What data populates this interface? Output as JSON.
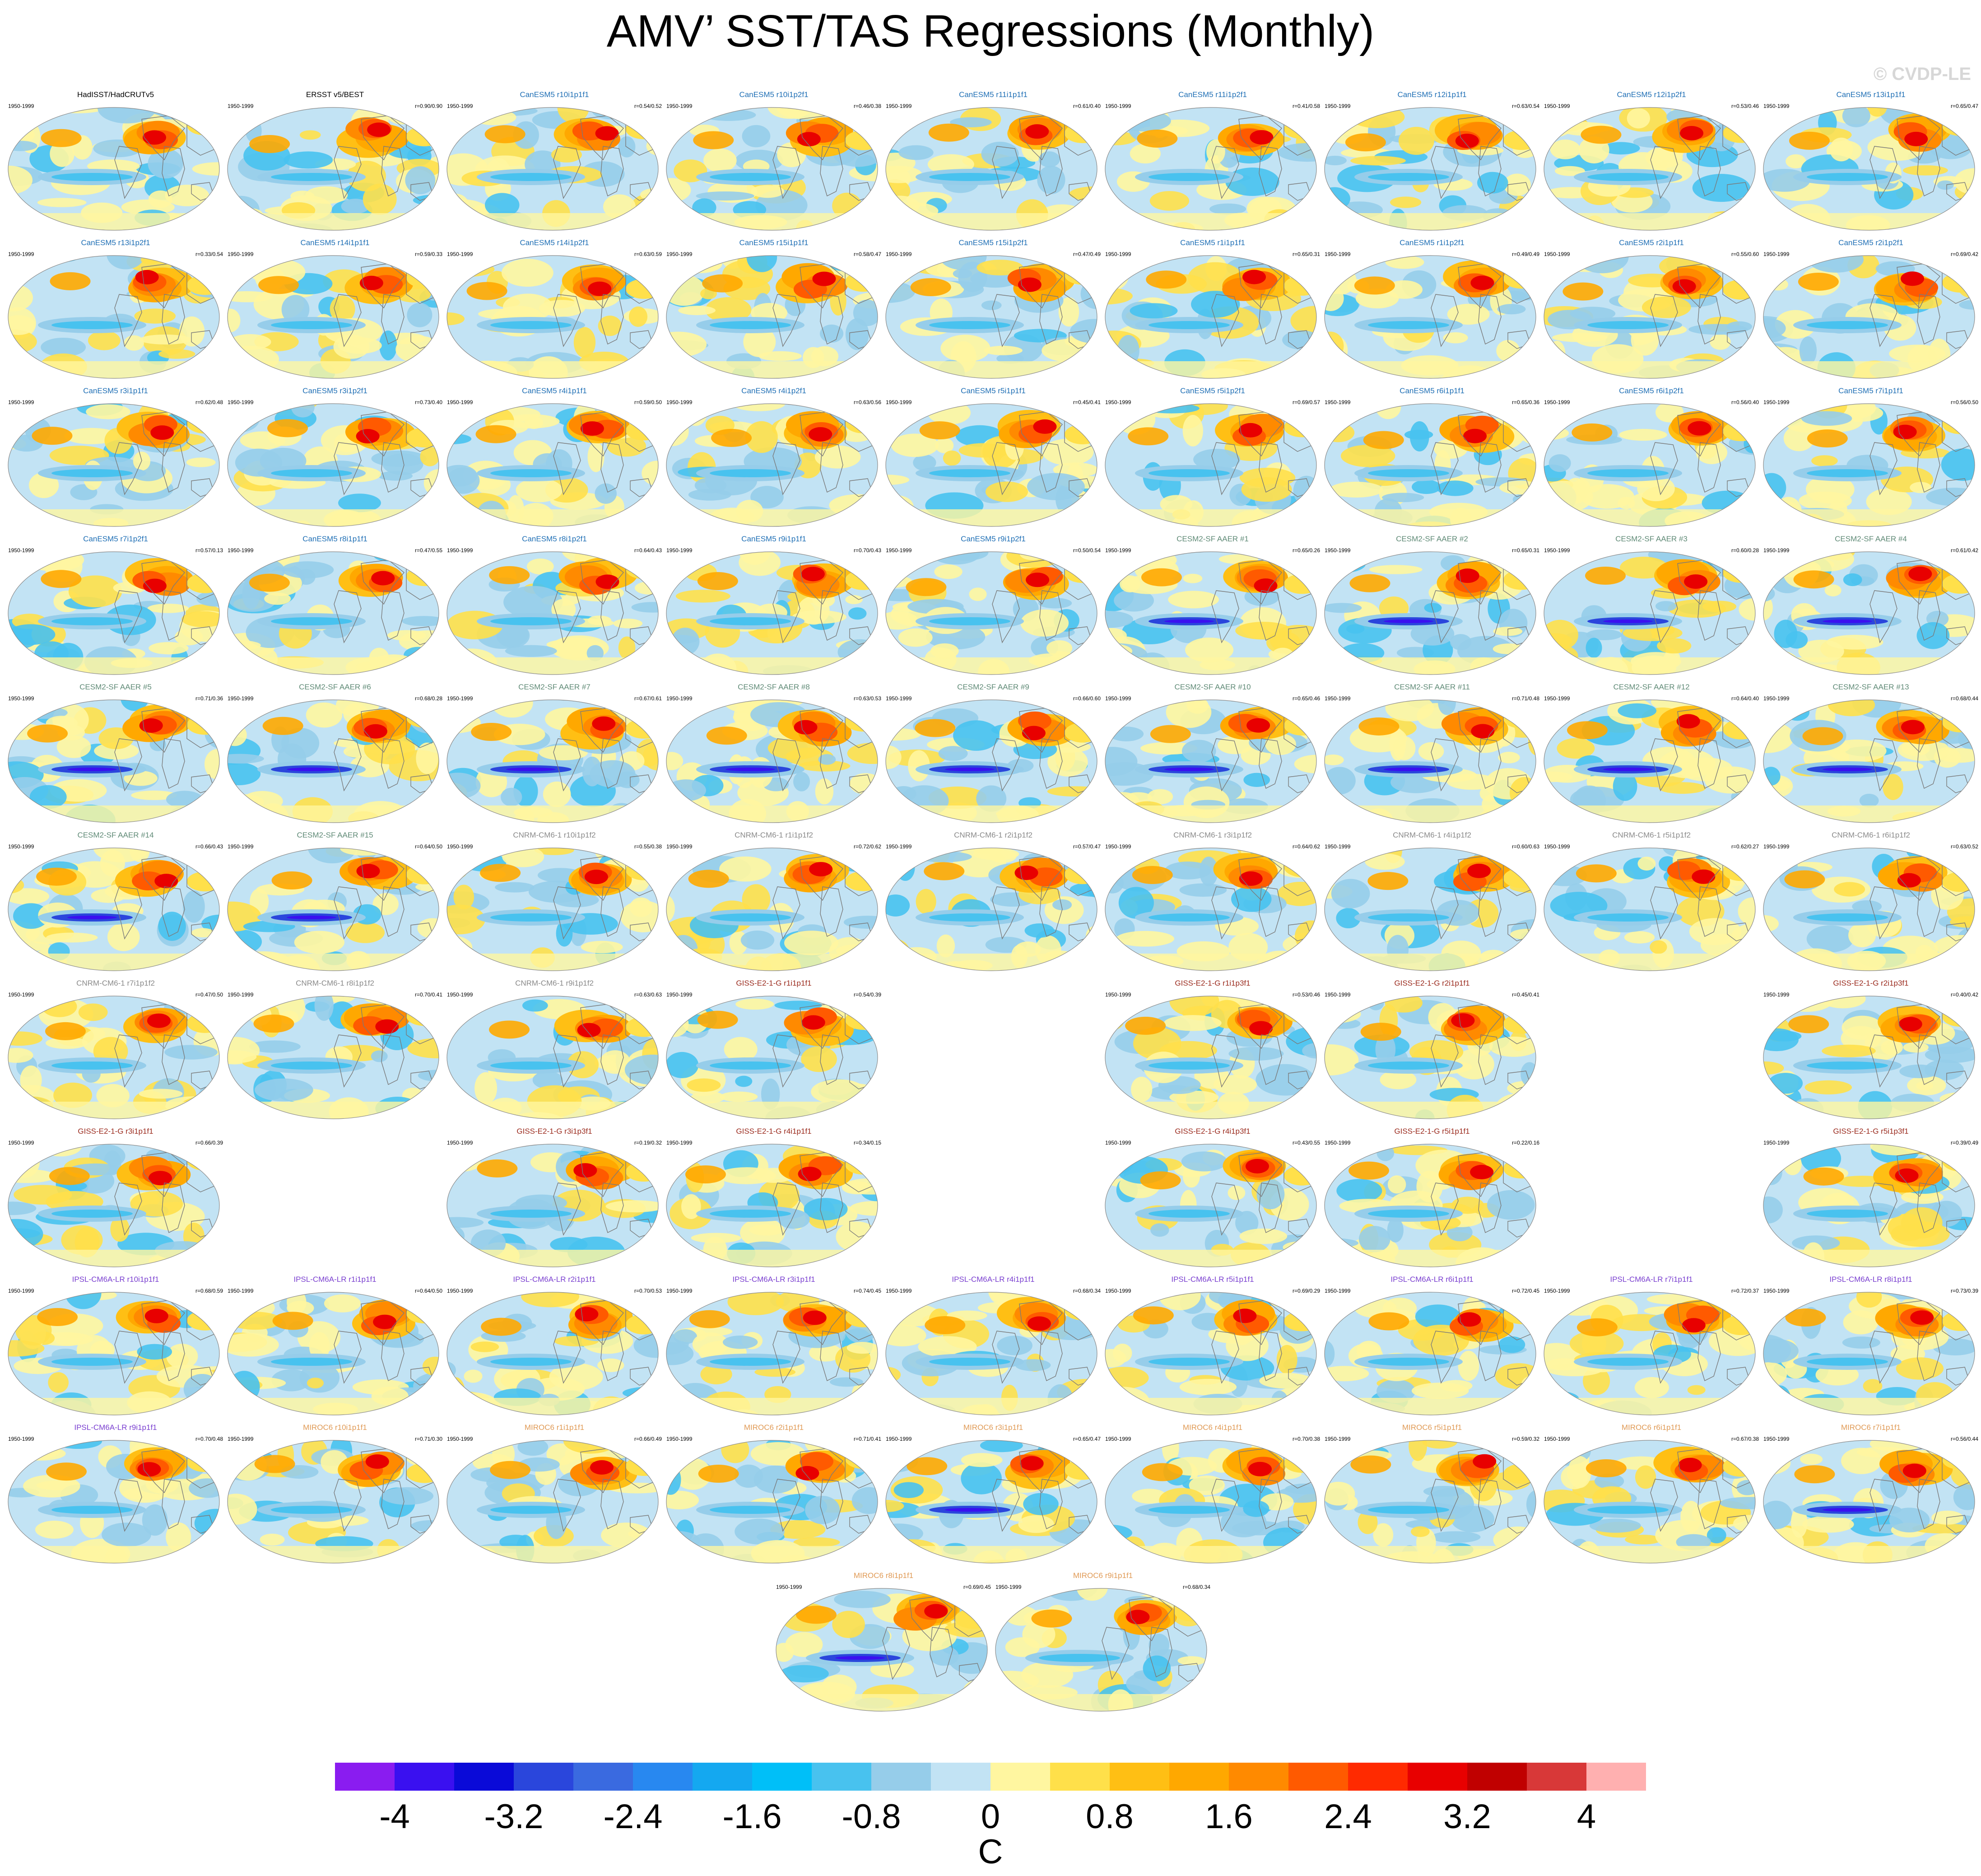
{
  "title": "AMV’ SST/TAS Regressions (Monthly)",
  "copyright": "© CVDP-LE",
  "chart_data": {
    "type": "heatmap",
    "title": "AMV’ SST/TAS Regressions (Monthly)",
    "grid": "9 columns of global map panels",
    "period": "1950-1999",
    "units": "C",
    "colorbar": {
      "labels": [
        "-4",
        "-3.2",
        "-2.4",
        "-1.6",
        "-0.8",
        "0",
        "0.8",
        "1.6",
        "2.4",
        "3.2",
        "4"
      ],
      "colors": [
        "#8a1cf0",
        "#3a10f0",
        "#0a0ad8",
        "#2a46dc",
        "#3a6ae0",
        "#2888f0",
        "#14a8f0",
        "#00bff8",
        "#48c2ef",
        "#96cdea",
        "#c2e3f4",
        "#fff6a0",
        "#ffe04a",
        "#ffbf14",
        "#ffa800",
        "#ff8a00",
        "#ff5a00",
        "#ff2a00",
        "#e80000",
        "#c00000",
        "#d83838",
        "#ffb0b0"
      ]
    },
    "panels": [
      {
        "row": 0,
        "col": 0,
        "name": "HadISST/HadCRUTv5",
        "group": "obs",
        "period": "1950-1999",
        "r": "",
        "seed": 1
      },
      {
        "row": 0,
        "col": 1,
        "name": "ERSST v5/BEST",
        "group": "obs",
        "period": "1950-1999",
        "r": "r=0.90/0.90",
        "seed": 2
      },
      {
        "row": 0,
        "col": 2,
        "name": "CanESM5 r10i1p1f1",
        "group": "canesm",
        "period": "1950-1999",
        "r": "r=0.54/0.52",
        "seed": 3
      },
      {
        "row": 0,
        "col": 3,
        "name": "CanESM5 r10i1p2f1",
        "group": "canesm",
        "period": "1950-1999",
        "r": "r=0.46/0.38",
        "seed": 4
      },
      {
        "row": 0,
        "col": 4,
        "name": "CanESM5 r11i1p1f1",
        "group": "canesm",
        "period": "1950-1999",
        "r": "r=0.61/0.40",
        "seed": 5
      },
      {
        "row": 0,
        "col": 5,
        "name": "CanESM5 r11i1p2f1",
        "group": "canesm",
        "period": "1950-1999",
        "r": "r=0.41/0.58",
        "seed": 6
      },
      {
        "row": 0,
        "col": 6,
        "name": "CanESM5 r12i1p1f1",
        "group": "canesm",
        "period": "1950-1999",
        "r": "r=0.63/0.54",
        "seed": 7
      },
      {
        "row": 0,
        "col": 7,
        "name": "CanESM5 r12i1p2f1",
        "group": "canesm",
        "period": "1950-1999",
        "r": "r=0.53/0.46",
        "seed": 8
      },
      {
        "row": 0,
        "col": 8,
        "name": "CanESM5 r13i1p1f1",
        "group": "canesm",
        "period": "1950-1999",
        "r": "r=0.65/0.47",
        "seed": 9
      },
      {
        "row": 1,
        "col": 0,
        "name": "CanESM5 r13i1p2f1",
        "group": "canesm",
        "period": "1950-1999",
        "r": "r=0.33/0.54",
        "seed": 10
      },
      {
        "row": 1,
        "col": 1,
        "name": "CanESM5 r14i1p1f1",
        "group": "canesm",
        "period": "1950-1999",
        "r": "r=0.59/0.33",
        "seed": 11
      },
      {
        "row": 1,
        "col": 2,
        "name": "CanESM5 r14i1p2f1",
        "group": "canesm",
        "period": "1950-1999",
        "r": "r=0.63/0.59",
        "seed": 12
      },
      {
        "row": 1,
        "col": 3,
        "name": "CanESM5 r15i1p1f1",
        "group": "canesm",
        "period": "1950-1999",
        "r": "r=0.58/0.47",
        "seed": 13
      },
      {
        "row": 1,
        "col": 4,
        "name": "CanESM5 r15i1p2f1",
        "group": "canesm",
        "period": "1950-1999",
        "r": "r=0.47/0.49",
        "seed": 14
      },
      {
        "row": 1,
        "col": 5,
        "name": "CanESM5 r1i1p1f1",
        "group": "canesm",
        "period": "1950-1999",
        "r": "r=0.65/0.31",
        "seed": 15
      },
      {
        "row": 1,
        "col": 6,
        "name": "CanESM5 r1i1p2f1",
        "group": "canesm",
        "period": "1950-1999",
        "r": "r=0.49/0.49",
        "seed": 16
      },
      {
        "row": 1,
        "col": 7,
        "name": "CanESM5 r2i1p1f1",
        "group": "canesm",
        "period": "1950-1999",
        "r": "r=0.55/0.60",
        "seed": 17
      },
      {
        "row": 1,
        "col": 8,
        "name": "CanESM5 r2i1p2f1",
        "group": "canesm",
        "period": "1950-1999",
        "r": "r=0.69/0.42",
        "seed": 18
      },
      {
        "row": 2,
        "col": 0,
        "name": "CanESM5 r3i1p1f1",
        "group": "canesm",
        "period": "1950-1999",
        "r": "r=0.62/0.48",
        "seed": 19
      },
      {
        "row": 2,
        "col": 1,
        "name": "CanESM5 r3i1p2f1",
        "group": "canesm",
        "period": "1950-1999",
        "r": "r=0.73/0.40",
        "seed": 20
      },
      {
        "row": 2,
        "col": 2,
        "name": "CanESM5 r4i1p1f1",
        "group": "canesm",
        "period": "1950-1999",
        "r": "r=0.59/0.50",
        "seed": 21
      },
      {
        "row": 2,
        "col": 3,
        "name": "CanESM5 r4i1p2f1",
        "group": "canesm",
        "period": "1950-1999",
        "r": "r=0.63/0.56",
        "seed": 22
      },
      {
        "row": 2,
        "col": 4,
        "name": "CanESM5 r5i1p1f1",
        "group": "canesm",
        "period": "1950-1999",
        "r": "r=0.45/0.41",
        "seed": 23
      },
      {
        "row": 2,
        "col": 5,
        "name": "CanESM5 r5i1p2f1",
        "group": "canesm",
        "period": "1950-1999",
        "r": "r=0.69/0.57",
        "seed": 24
      },
      {
        "row": 2,
        "col": 6,
        "name": "CanESM5 r6i1p1f1",
        "group": "canesm",
        "period": "1950-1999",
        "r": "r=0.65/0.36",
        "seed": 25
      },
      {
        "row": 2,
        "col": 7,
        "name": "CanESM5 r6i1p2f1",
        "group": "canesm",
        "period": "1950-1999",
        "r": "r=0.56/0.40",
        "seed": 26
      },
      {
        "row": 2,
        "col": 8,
        "name": "CanESM5 r7i1p1f1",
        "group": "canesm",
        "period": "1950-1999",
        "r": "r=0.56/0.50",
        "seed": 27
      },
      {
        "row": 3,
        "col": 0,
        "name": "CanESM5 r7i1p2f1",
        "group": "canesm",
        "period": "1950-1999",
        "r": "r=0.57/0.13",
        "seed": 28
      },
      {
        "row": 3,
        "col": 1,
        "name": "CanESM5 r8i1p1f1",
        "group": "canesm",
        "period": "1950-1999",
        "r": "r=0.47/0.55",
        "seed": 29
      },
      {
        "row": 3,
        "col": 2,
        "name": "CanESM5 r8i1p2f1",
        "group": "canesm",
        "period": "1950-1999",
        "r": "r=0.64/0.43",
        "seed": 30
      },
      {
        "row": 3,
        "col": 3,
        "name": "CanESM5 r9i1p1f1",
        "group": "canesm",
        "period": "1950-1999",
        "r": "r=0.70/0.43",
        "seed": 31
      },
      {
        "row": 3,
        "col": 4,
        "name": "CanESM5 r9i1p2f1",
        "group": "canesm",
        "period": "1950-1999",
        "r": "r=0.50/0.54",
        "seed": 32
      },
      {
        "row": 3,
        "col": 5,
        "name": "CESM2-SF AAER #1",
        "group": "cesm",
        "period": "1950-1999",
        "r": "r=0.65/0.26",
        "seed": 33
      },
      {
        "row": 3,
        "col": 6,
        "name": "CESM2-SF AAER #2",
        "group": "cesm",
        "period": "1950-1999",
        "r": "r=0.65/0.31",
        "seed": 34
      },
      {
        "row": 3,
        "col": 7,
        "name": "CESM2-SF AAER #3",
        "group": "cesm",
        "period": "1950-1999",
        "r": "r=0.60/0.28",
        "seed": 35
      },
      {
        "row": 3,
        "col": 8,
        "name": "CESM2-SF AAER #4",
        "group": "cesm",
        "period": "1950-1999",
        "r": "r=0.61/0.42",
        "seed": 36
      },
      {
        "row": 4,
        "col": 0,
        "name": "CESM2-SF AAER #5",
        "group": "cesm",
        "period": "1950-1999",
        "r": "r=0.71/0.36",
        "seed": 37
      },
      {
        "row": 4,
        "col": 1,
        "name": "CESM2-SF AAER #6",
        "group": "cesm",
        "period": "1950-1999",
        "r": "r=0.68/0.28",
        "seed": 38
      },
      {
        "row": 4,
        "col": 2,
        "name": "CESM2-SF AAER #7",
        "group": "cesm",
        "period": "1950-1999",
        "r": "r=0.67/0.61",
        "seed": 39
      },
      {
        "row": 4,
        "col": 3,
        "name": "CESM2-SF AAER #8",
        "group": "cesm",
        "period": "1950-1999",
        "r": "r=0.63/0.53",
        "seed": 40
      },
      {
        "row": 4,
        "col": 4,
        "name": "CESM2-SF AAER #9",
        "group": "cesm",
        "period": "1950-1999",
        "r": "r=0.66/0.60",
        "seed": 41
      },
      {
        "row": 4,
        "col": 5,
        "name": "CESM2-SF AAER #10",
        "group": "cesm",
        "period": "1950-1999",
        "r": "r=0.65/0.46",
        "seed": 42
      },
      {
        "row": 4,
        "col": 6,
        "name": "CESM2-SF AAER #11",
        "group": "cesm",
        "period": "1950-1999",
        "r": "r=0.71/0.48",
        "seed": 43
      },
      {
        "row": 4,
        "col": 7,
        "name": "CESM2-SF AAER #12",
        "group": "cesm",
        "period": "1950-1999",
        "r": "r=0.64/0.40",
        "seed": 44
      },
      {
        "row": 4,
        "col": 8,
        "name": "CESM2-SF AAER #13",
        "group": "cesm",
        "period": "1950-1999",
        "r": "r=0.68/0.44",
        "seed": 45
      },
      {
        "row": 5,
        "col": 0,
        "name": "CESM2-SF AAER #14",
        "group": "cesm",
        "period": "1950-1999",
        "r": "r=0.66/0.43",
        "seed": 46
      },
      {
        "row": 5,
        "col": 1,
        "name": "CESM2-SF AAER #15",
        "group": "cesm",
        "period": "1950-1999",
        "r": "r=0.64/0.50",
        "seed": 47
      },
      {
        "row": 5,
        "col": 2,
        "name": "CNRM-CM6-1 r10i1p1f2",
        "group": "cnrm",
        "period": "1950-1999",
        "r": "r=0.55/0.38",
        "seed": 48
      },
      {
        "row": 5,
        "col": 3,
        "name": "CNRM-CM6-1 r1i1p1f2",
        "group": "cnrm",
        "period": "1950-1999",
        "r": "r=0.72/0.62",
        "seed": 49
      },
      {
        "row": 5,
        "col": 4,
        "name": "CNRM-CM6-1 r2i1p1f2",
        "group": "cnrm",
        "period": "1950-1999",
        "r": "r=0.57/0.47",
        "seed": 50
      },
      {
        "row": 5,
        "col": 5,
        "name": "CNRM-CM6-1 r3i1p1f2",
        "group": "cnrm",
        "period": "1950-1999",
        "r": "r=0.64/0.62",
        "seed": 51
      },
      {
        "row": 5,
        "col": 6,
        "name": "CNRM-CM6-1 r4i1p1f2",
        "group": "cnrm",
        "period": "1950-1999",
        "r": "r=0.60/0.63",
        "seed": 52
      },
      {
        "row": 5,
        "col": 7,
        "name": "CNRM-CM6-1 r5i1p1f2",
        "group": "cnrm",
        "period": "1950-1999",
        "r": "r=0.62/0.27",
        "seed": 53
      },
      {
        "row": 5,
        "col": 8,
        "name": "CNRM-CM6-1 r6i1p1f2",
        "group": "cnrm",
        "period": "1950-1999",
        "r": "r=0.63/0.52",
        "seed": 54
      },
      {
        "row": 6,
        "col": 0,
        "name": "CNRM-CM6-1 r7i1p1f2",
        "group": "cnrm",
        "period": "1950-1999",
        "r": "r=0.47/0.50",
        "seed": 55
      },
      {
        "row": 6,
        "col": 1,
        "name": "CNRM-CM6-1 r8i1p1f2",
        "group": "cnrm",
        "period": "1950-1999",
        "r": "r=0.70/0.41",
        "seed": 56
      },
      {
        "row": 6,
        "col": 2,
        "name": "CNRM-CM6-1 r9i1p1f2",
        "group": "cnrm",
        "period": "1950-1999",
        "r": "r=0.63/0.63",
        "seed": 57
      },
      {
        "row": 6,
        "col": 3,
        "name": "GISS-E2-1-G r1i1p1f1",
        "group": "giss",
        "period": "1950-1999",
        "r": "r=0.54/0.39",
        "seed": 58
      },
      {
        "row": 6,
        "col": 5,
        "name": "GISS-E2-1-G r1i1p3f1",
        "group": "giss",
        "period": "1950-1999",
        "r": "r=0.53/0.46",
        "seed": 59
      },
      {
        "row": 6,
        "col": 6,
        "name": "GISS-E2-1-G r2i1p1f1",
        "group": "giss",
        "period": "1950-1999",
        "r": "r=0.45/0.41",
        "seed": 60
      },
      {
        "row": 6,
        "col": 8,
        "name": "GISS-E2-1-G r2i1p3f1",
        "group": "giss",
        "period": "1950-1999",
        "r": "r=0.40/0.42",
        "seed": 61
      },
      {
        "row": 7,
        "col": 0,
        "name": "GISS-E2-1-G r3i1p1f1",
        "group": "giss",
        "period": "1950-1999",
        "r": "r=0.66/0.39",
        "seed": 62
      },
      {
        "row": 7,
        "col": 2,
        "name": "GISS-E2-1-G r3i1p3f1",
        "group": "giss",
        "period": "1950-1999",
        "r": "r=0.19/0.32",
        "seed": 63
      },
      {
        "row": 7,
        "col": 3,
        "name": "GISS-E2-1-G r4i1p1f1",
        "group": "giss",
        "period": "1950-1999",
        "r": "r=0.34/0.15",
        "seed": 64
      },
      {
        "row": 7,
        "col": 5,
        "name": "GISS-E2-1-G r4i1p3f1",
        "group": "giss",
        "period": "1950-1999",
        "r": "r=0.43/0.55",
        "seed": 65
      },
      {
        "row": 7,
        "col": 6,
        "name": "GISS-E2-1-G r5i1p1f1",
        "group": "giss",
        "period": "1950-1999",
        "r": "r=0.22/0.16",
        "seed": 66
      },
      {
        "row": 7,
        "col": 8,
        "name": "GISS-E2-1-G r5i1p3f1",
        "group": "giss",
        "period": "1950-1999",
        "r": "r=0.39/0.49",
        "seed": 67
      },
      {
        "row": 8,
        "col": 0,
        "name": "IPSL-CM6A-LR r10i1p1f1",
        "group": "ipsl",
        "period": "1950-1999",
        "r": "r=0.68/0.59",
        "seed": 68
      },
      {
        "row": 8,
        "col": 1,
        "name": "IPSL-CM6A-LR r1i1p1f1",
        "group": "ipsl",
        "period": "1950-1999",
        "r": "r=0.64/0.50",
        "seed": 69
      },
      {
        "row": 8,
        "col": 2,
        "name": "IPSL-CM6A-LR r2i1p1f1",
        "group": "ipsl",
        "period": "1950-1999",
        "r": "r=0.70/0.53",
        "seed": 70
      },
      {
        "row": 8,
        "col": 3,
        "name": "IPSL-CM6A-LR r3i1p1f1",
        "group": "ipsl",
        "period": "1950-1999",
        "r": "r=0.74/0.45",
        "seed": 71
      },
      {
        "row": 8,
        "col": 4,
        "name": "IPSL-CM6A-LR r4i1p1f1",
        "group": "ipsl",
        "period": "1950-1999",
        "r": "r=0.68/0.34",
        "seed": 72
      },
      {
        "row": 8,
        "col": 5,
        "name": "IPSL-CM6A-LR r5i1p1f1",
        "group": "ipsl",
        "period": "1950-1999",
        "r": "r=0.69/0.29",
        "seed": 73
      },
      {
        "row": 8,
        "col": 6,
        "name": "IPSL-CM6A-LR r6i1p1f1",
        "group": "ipsl",
        "period": "1950-1999",
        "r": "r=0.72/0.45",
        "seed": 74
      },
      {
        "row": 8,
        "col": 7,
        "name": "IPSL-CM6A-LR r7i1p1f1",
        "group": "ipsl",
        "period": "1950-1999",
        "r": "r=0.72/0.37",
        "seed": 75
      },
      {
        "row": 8,
        "col": 8,
        "name": "IPSL-CM6A-LR r8i1p1f1",
        "group": "ipsl",
        "period": "1950-1999",
        "r": "r=0.73/0.39",
        "seed": 76
      },
      {
        "row": 9,
        "col": 0,
        "name": "IPSL-CM6A-LR r9i1p1f1",
        "group": "ipsl",
        "period": "1950-1999",
        "r": "r=0.70/0.48",
        "seed": 77
      },
      {
        "row": 9,
        "col": 1,
        "name": "MIROC6 r10i1p1f1",
        "group": "miroc",
        "period": "1950-1999",
        "r": "r=0.71/0.30",
        "seed": 78
      },
      {
        "row": 9,
        "col": 2,
        "name": "MIROC6 r1i1p1f1",
        "group": "miroc",
        "period": "1950-1999",
        "r": "r=0.66/0.49",
        "seed": 79
      },
      {
        "row": 9,
        "col": 3,
        "name": "MIROC6 r2i1p1f1",
        "group": "miroc",
        "period": "1950-1999",
        "r": "r=0.71/0.41",
        "seed": 80
      },
      {
        "row": 9,
        "col": 4,
        "name": "MIROC6 r3i1p1f1",
        "group": "miroc",
        "period": "1950-1999",
        "r": "r=0.65/0.47",
        "seed": 81
      },
      {
        "row": 9,
        "col": 5,
        "name": "MIROC6 r4i1p1f1",
        "group": "miroc",
        "period": "1950-1999",
        "r": "r=0.70/0.38",
        "seed": 82
      },
      {
        "row": 9,
        "col": 6,
        "name": "MIROC6 r5i1p1f1",
        "group": "miroc",
        "period": "1950-1999",
        "r": "r=0.59/0.32",
        "seed": 83
      },
      {
        "row": 9,
        "col": 7,
        "name": "MIROC6 r6i1p1f1",
        "group": "miroc",
        "period": "1950-1999",
        "r": "r=0.67/0.38",
        "seed": 84
      },
      {
        "row": 9,
        "col": 8,
        "name": "MIROC6 r7i1p1f1",
        "group": "miroc",
        "period": "1950-1999",
        "r": "r=0.56/0.44",
        "seed": 85
      },
      {
        "row": 10,
        "col": 3.5,
        "name": "MIROC6 r8i1p1f1",
        "group": "miroc",
        "period": "1950-1999",
        "r": "r=0.69/0.45",
        "seed": 86
      },
      {
        "row": 10,
        "col": 4.5,
        "name": "MIROC6 r9i1p1f1",
        "group": "miroc",
        "period": "1950-1999",
        "r": "r=0.68/0.34",
        "seed": 87
      }
    ]
  },
  "group_colors": {
    "obs": "#000000",
    "canesm": "#1f6fb5",
    "cesm": "#5f8a76",
    "cnrm": "#8a8a8a",
    "giss": "#9b2b1e",
    "ipsl": "#7a3fd0",
    "miroc": "#e09a55"
  }
}
